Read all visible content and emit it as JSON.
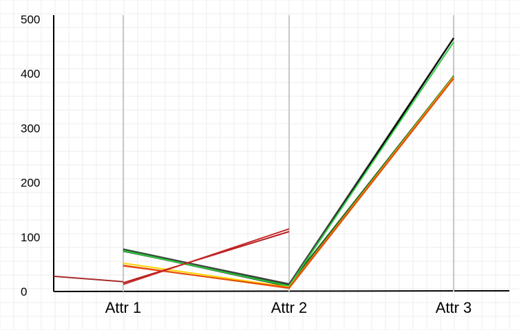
{
  "chart_data": {
    "type": "line",
    "title": "",
    "xlabel": "",
    "ylabel": "",
    "categories": [
      "Attr 1",
      "Attr 2",
      "Attr 3"
    ],
    "ylim": [
      0,
      500
    ],
    "yticks": [
      0,
      100,
      200,
      300,
      400,
      500
    ],
    "grid": true,
    "legend": "none",
    "series": [
      {
        "color": "#2e7d32",
        "values": [
          78,
          13,
          396
        ]
      },
      {
        "color": "#1b5e20",
        "values": [
          74,
          12,
          395
        ]
      },
      {
        "color": "#424242",
        "values": [
          77,
          14,
          466
        ]
      },
      {
        "color": "#000000",
        "values": [
          75,
          9,
          465
        ]
      },
      {
        "color": "#2ecc40",
        "values": [
          75,
          10,
          458
        ]
      },
      {
        "color": "#ffd400",
        "values": [
          52,
          8,
          394
        ]
      },
      {
        "color": "#e53935",
        "values": [
          47,
          7,
          392
        ]
      },
      {
        "color": "#e65100",
        "values": [
          48,
          6,
          391
        ]
      },
      {
        "color": "#b71c1c",
        "values": [
          16,
          110,
          null
        ]
      },
      {
        "color": "#c62828",
        "values": [
          13,
          115,
          null
        ]
      }
    ],
    "segments": [
      {
        "color": "#a52a2a",
        "y_start": 28,
        "y_end_attr1": 18
      }
    ]
  }
}
